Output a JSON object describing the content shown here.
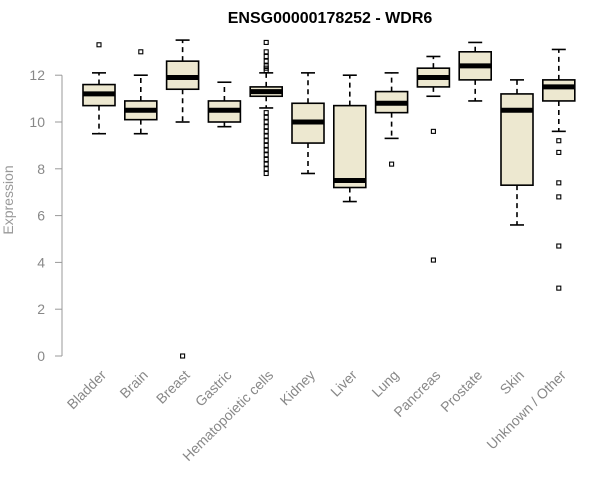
{
  "chart_data": {
    "type": "boxplot",
    "title": "ENSG00000178252 - WDR6",
    "xlabel": "",
    "ylabel": "Expression",
    "ylim": [
      0,
      14
    ],
    "yticks": [
      0,
      2,
      4,
      6,
      8,
      10,
      12
    ],
    "grid": false,
    "series": [
      {
        "name": "Bladder",
        "whisker_low": 9.5,
        "q1": 10.7,
        "median": 11.2,
        "q3": 11.6,
        "whisker_high": 12.1,
        "outliers": [
          13.3
        ]
      },
      {
        "name": "Brain",
        "whisker_low": 9.5,
        "q1": 10.1,
        "median": 10.5,
        "q3": 10.9,
        "whisker_high": 12.0,
        "outliers": [
          13.0
        ]
      },
      {
        "name": "Breast",
        "whisker_low": 10.0,
        "q1": 11.4,
        "median": 11.9,
        "q3": 12.6,
        "whisker_high": 13.5,
        "outliers": [
          0.0
        ]
      },
      {
        "name": "Gastric",
        "whisker_low": 9.8,
        "q1": 10.0,
        "median": 10.5,
        "q3": 10.9,
        "whisker_high": 11.7,
        "outliers": []
      },
      {
        "name": "Hematopoietic cells",
        "whisker_low": 10.6,
        "q1": 11.1,
        "median": 11.3,
        "q3": 11.5,
        "whisker_high": 12.1,
        "outliers": [
          13.4,
          13.0,
          12.8,
          12.6,
          12.4,
          12.3,
          12.2,
          10.4,
          10.2,
          10.0,
          9.8,
          9.6,
          9.4,
          9.2,
          9.0,
          8.8,
          8.6,
          8.4,
          8.2,
          8.0,
          7.8
        ]
      },
      {
        "name": "Kidney",
        "whisker_low": 7.8,
        "q1": 9.1,
        "median": 10.0,
        "q3": 10.8,
        "whisker_high": 12.1,
        "outliers": []
      },
      {
        "name": "Liver",
        "whisker_low": 6.6,
        "q1": 7.2,
        "median": 7.5,
        "q3": 10.7,
        "whisker_high": 12.0,
        "outliers": []
      },
      {
        "name": "Lung",
        "whisker_low": 9.3,
        "q1": 10.4,
        "median": 10.8,
        "q3": 11.3,
        "whisker_high": 12.1,
        "outliers": [
          8.2
        ]
      },
      {
        "name": "Pancreas",
        "whisker_low": 11.1,
        "q1": 11.5,
        "median": 11.9,
        "q3": 12.3,
        "whisker_high": 12.8,
        "outliers": [
          9.6,
          4.1
        ]
      },
      {
        "name": "Prostate",
        "whisker_low": 10.9,
        "q1": 11.8,
        "median": 12.4,
        "q3": 13.0,
        "whisker_high": 13.4,
        "outliers": []
      },
      {
        "name": "Skin",
        "whisker_low": 5.6,
        "q1": 7.3,
        "median": 10.5,
        "q3": 11.2,
        "whisker_high": 11.8,
        "outliers": []
      },
      {
        "name": "Unknown / Other",
        "whisker_low": 9.6,
        "q1": 10.9,
        "median": 11.5,
        "q3": 11.8,
        "whisker_high": 13.1,
        "outliers": [
          9.2,
          8.7,
          7.4,
          6.8,
          4.7,
          2.9
        ]
      }
    ]
  }
}
